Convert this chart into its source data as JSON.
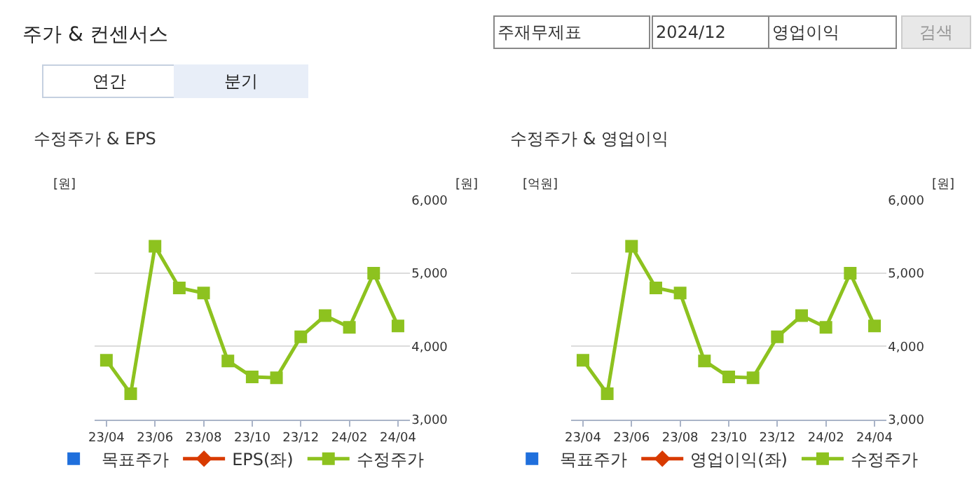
{
  "chart_data": [
    {
      "type": "other",
      "title": "주가 & 컨센서스",
      "annotations": [
        "주재무제표",
        "2024/12",
        "영업이익",
        "검색",
        "연간",
        "분기"
      ]
    },
    {
      "type": "line",
      "title": "수정주가 & EPS",
      "ylabel": "[원]",
      "y2label": "[원]",
      "categories": [
        "23/04",
        null,
        "23/06",
        null,
        "23/08",
        null,
        "23/10",
        null,
        "23/12",
        null,
        "24/02",
        null,
        "24/04"
      ],
      "series": [
        {
          "name": "목표주가",
          "color": "#1f6fdc",
          "marker": "square",
          "type": "scatter",
          "values": [
            null,
            null,
            null,
            null,
            null,
            null,
            null,
            null,
            null,
            null,
            null,
            null,
            null
          ]
        },
        {
          "name": "EPS(좌)",
          "color": "#d83a00",
          "marker": "diamond",
          "values": [
            null,
            null,
            null,
            null,
            null,
            null,
            null,
            null,
            null,
            null,
            null,
            null,
            null
          ]
        },
        {
          "name": "수정주가",
          "color": "#8dc21f",
          "marker": "square",
          "axis": "y2",
          "values": [
            3810,
            3350,
            5370,
            4800,
            4730,
            3800,
            3580,
            3570,
            4130,
            4420,
            4260,
            5000,
            4280
          ]
        }
      ],
      "y2lim": [
        3000,
        6000
      ],
      "y2ticks": [
        {
          "value": 3000,
          "label": "3,000"
        },
        {
          "value": 4000,
          "label": "4,000"
        },
        {
          "value": 5000,
          "label": "5,000"
        },
        {
          "value": 6000,
          "label": "6,000"
        }
      ],
      "grid": "y",
      "legend": "bottom",
      "line_style": "solid"
    },
    {
      "type": "line",
      "title": "수정주가 & 영업이익",
      "ylabel": "[억원]",
      "y2label": "[원]",
      "categories": [
        "23/04",
        null,
        "23/06",
        null,
        "23/08",
        null,
        "23/10",
        null,
        "23/12",
        null,
        "24/02",
        null,
        "24/04"
      ],
      "series": [
        {
          "name": "목표주가",
          "color": "#1f6fdc",
          "marker": "square",
          "type": "scatter",
          "values": [
            null,
            null,
            null,
            null,
            null,
            null,
            null,
            null,
            null,
            null,
            null,
            null,
            null
          ]
        },
        {
          "name": "영업이익(좌)",
          "color": "#d83a00",
          "marker": "diamond",
          "values": [
            null,
            null,
            null,
            null,
            null,
            null,
            null,
            null,
            null,
            null,
            null,
            null,
            null
          ]
        },
        {
          "name": "수정주가",
          "color": "#8dc21f",
          "marker": "square",
          "axis": "y2",
          "values": [
            3810,
            3350,
            5370,
            4800,
            4730,
            3800,
            3580,
            3570,
            4130,
            4420,
            4260,
            5000,
            4280
          ]
        }
      ],
      "y2lim": [
        3000,
        6000
      ],
      "y2ticks": [
        {
          "value": 3000,
          "label": "3,000"
        },
        {
          "value": 4000,
          "label": "4,000"
        },
        {
          "value": 5000,
          "label": "5,000"
        },
        {
          "value": 6000,
          "label": "6,000"
        }
      ],
      "grid": "y",
      "legend": "bottom",
      "line_style": "solid"
    }
  ]
}
